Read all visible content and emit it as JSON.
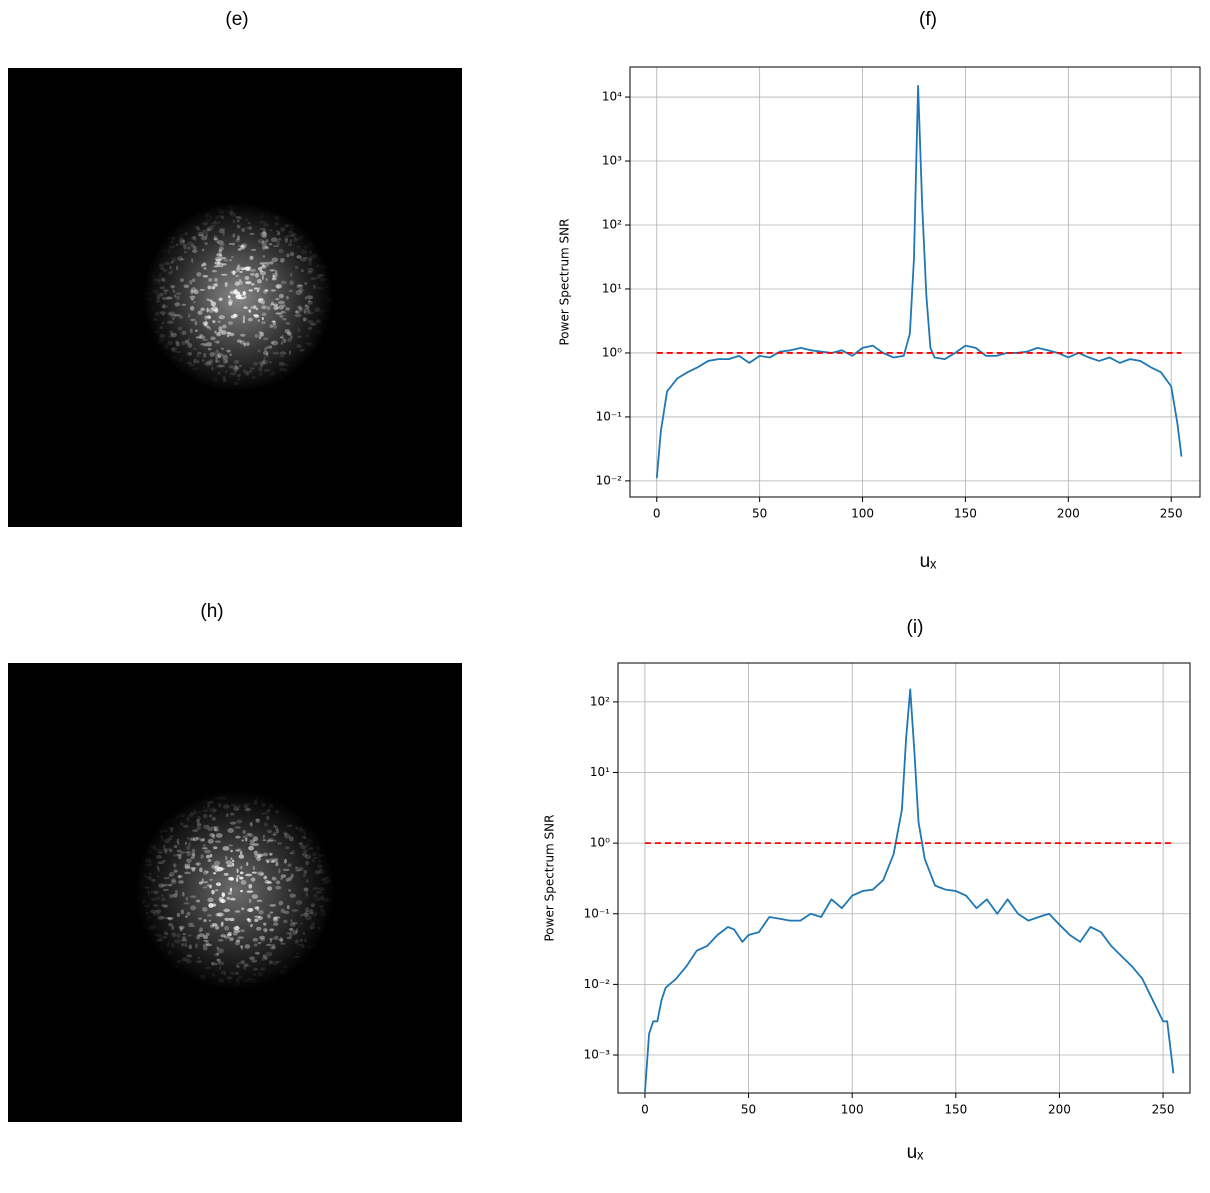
{
  "image_panels": [
    {
      "label": "(e)"
    },
    {
      "label": "(h)"
    }
  ],
  "chart_data": [
    {
      "type": "line",
      "title": "(f)",
      "x_label": "uₓ",
      "y_label": "Power Spectrum SNR",
      "yscale": "log",
      "grid": true,
      "xlim": [
        -13,
        264
      ],
      "xticks": [
        0,
        50,
        100,
        150,
        200,
        250
      ],
      "ylim": [
        0.0056,
        29500
      ],
      "yticks": [
        {
          "value": 0.01,
          "label": "10⁻²"
        },
        {
          "value": 0.1,
          "label": "10⁻¹"
        },
        {
          "value": 1,
          "label": "10⁰"
        },
        {
          "value": 10,
          "label": "10¹"
        },
        {
          "value": 100,
          "label": "10²"
        },
        {
          "value": 1000,
          "label": "10³"
        },
        {
          "value": 10000,
          "label": "10⁴"
        }
      ],
      "series": [
        {
          "color": "#1f77b4",
          "x": [
            0,
            2,
            5,
            10,
            15,
            20,
            25,
            30,
            35,
            40,
            45,
            50,
            55,
            60,
            65,
            70,
            75,
            80,
            85,
            90,
            95,
            100,
            105,
            110,
            115,
            120,
            123,
            125,
            127,
            129,
            131,
            133,
            135,
            140,
            145,
            150,
            155,
            160,
            165,
            170,
            175,
            180,
            185,
            190,
            195,
            200,
            205,
            210,
            215,
            220,
            225,
            230,
            235,
            240,
            245,
            250,
            253,
            255
          ],
          "values": [
            0.011,
            0.06,
            0.25,
            0.4,
            0.5,
            0.6,
            0.75,
            0.8,
            0.8,
            0.9,
            0.7,
            0.9,
            0.85,
            1.05,
            1.1,
            1.2,
            1.1,
            1.05,
            1.0,
            1.1,
            0.9,
            1.2,
            1.3,
            1.0,
            0.85,
            0.9,
            2,
            30,
            15000,
            200,
            8,
            1.2,
            0.85,
            0.8,
            1.0,
            1.3,
            1.2,
            0.9,
            0.9,
            1.0,
            1.0,
            1.05,
            1.2,
            1.1,
            1.0,
            0.85,
            1.0,
            0.85,
            0.75,
            0.85,
            0.7,
            0.8,
            0.75,
            0.6,
            0.5,
            0.3,
            0.08,
            0.024
          ]
        },
        {
          "color": "#ff0000",
          "dash": true,
          "x": [
            0,
            255
          ],
          "values": [
            1,
            1
          ]
        }
      ]
    },
    {
      "type": "line",
      "title": "(i)",
      "x_label": "uₓ",
      "y_label": "Power Spectrum SNR",
      "yscale": "log",
      "grid": true,
      "xlim": [
        -13,
        263
      ],
      "xticks": [
        0,
        50,
        100,
        150,
        200,
        250
      ],
      "ylim": [
        0.00029,
        355
      ],
      "yticks": [
        {
          "value": 0.001,
          "label": "10⁻³"
        },
        {
          "value": 0.01,
          "label": "10⁻²"
        },
        {
          "value": 0.1,
          "label": "10⁻¹"
        },
        {
          "value": 1,
          "label": "10⁰"
        },
        {
          "value": 10,
          "label": "10¹"
        },
        {
          "value": 100,
          "label": "10²"
        }
      ],
      "series": [
        {
          "color": "#1f77b4",
          "x": [
            0,
            2,
            4,
            6,
            8,
            10,
            15,
            20,
            25,
            30,
            35,
            40,
            43,
            47,
            50,
            55,
            60,
            65,
            70,
            75,
            80,
            85,
            90,
            95,
            100,
            105,
            110,
            115,
            120,
            124,
            126,
            128,
            130,
            132,
            135,
            140,
            145,
            150,
            155,
            160,
            165,
            170,
            175,
            180,
            185,
            190,
            195,
            200,
            205,
            210,
            215,
            220,
            225,
            230,
            235,
            240,
            245,
            250,
            252,
            255
          ],
          "values": [
            0.0003,
            0.002,
            0.003,
            0.003,
            0.006,
            0.009,
            0.012,
            0.018,
            0.03,
            0.035,
            0.05,
            0.065,
            0.06,
            0.04,
            0.05,
            0.055,
            0.09,
            0.085,
            0.08,
            0.08,
            0.1,
            0.09,
            0.16,
            0.12,
            0.18,
            0.21,
            0.22,
            0.3,
            0.7,
            3,
            30,
            150,
            20,
            2,
            0.6,
            0.25,
            0.22,
            0.21,
            0.18,
            0.12,
            0.16,
            0.1,
            0.16,
            0.1,
            0.08,
            0.09,
            0.1,
            0.07,
            0.05,
            0.04,
            0.065,
            0.055,
            0.035,
            0.025,
            0.018,
            0.012,
            0.006,
            0.003,
            0.003,
            0.00055
          ]
        },
        {
          "color": "#ff0000",
          "dash": true,
          "x": [
            0,
            255
          ],
          "values": [
            1,
            1
          ]
        }
      ]
    }
  ]
}
